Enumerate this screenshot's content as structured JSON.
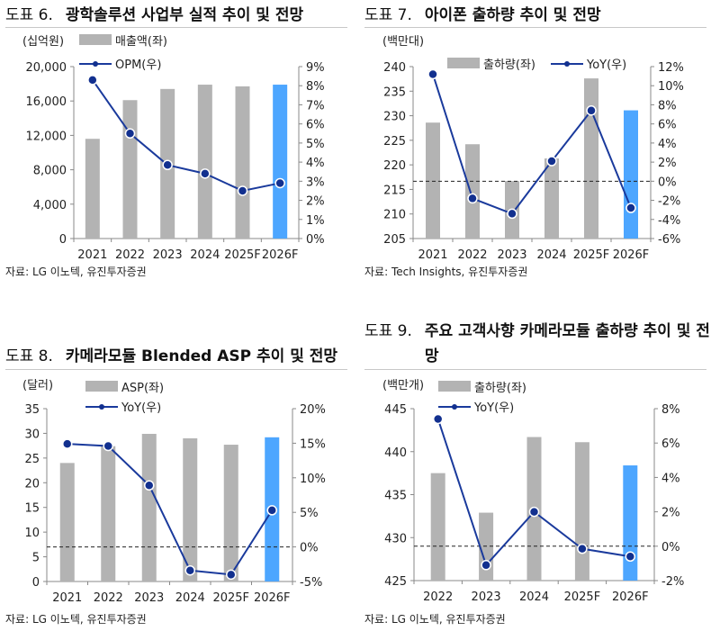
{
  "charts": [
    {
      "prefix": "도표 6.",
      "title": "광학솔루션 사업부 실적 추이 및 전망",
      "unit": "(십억원)",
      "source": "자료: LG 이노텍, 유진투자증권",
      "chart_data": {
        "type": "bar+line",
        "categories": [
          "2021",
          "2022",
          "2023",
          "2024",
          "2025F",
          "2026F"
        ],
        "bar": {
          "name": "매출액(좌)",
          "values": [
            11600,
            16100,
            17400,
            17900,
            17700,
            17900
          ]
        },
        "line": {
          "name": "OPM(우)",
          "values": [
            8.3,
            5.5,
            3.85,
            3.4,
            2.5,
            2.9
          ]
        },
        "y_left": {
          "min": 0,
          "max": 20000,
          "ticks": [
            "0",
            "4,000",
            "8,000",
            "12,000",
            "16,000",
            "20,000"
          ]
        },
        "y_right": {
          "min": 0,
          "max": 9,
          "ticks": [
            "0%",
            "1%",
            "2%",
            "3%",
            "4%",
            "5%",
            "6%",
            "7%",
            "8%",
            "9%"
          ]
        },
        "zero_line": false,
        "highlight_last": true,
        "colors": {
          "bar": "#b3b3b3",
          "highlight": "#4da6ff",
          "line": "#1a3a9c"
        }
      }
    },
    {
      "prefix": "도표 7.",
      "title": "아이폰 출하량 추이 및 전망",
      "unit": "(백만대)",
      "source": "자료: Tech Insights, 유진투자증권",
      "chart_data": {
        "type": "bar+line",
        "categories": [
          "2021",
          "2022",
          "2023",
          "2024",
          "2025F",
          "2026F"
        ],
        "bar": {
          "name": "출하량(좌)",
          "values": [
            228.6,
            224.2,
            216.7,
            221.3,
            237.6,
            231.1
          ]
        },
        "line": {
          "name": "YoY(우)",
          "values": [
            11.2,
            -1.8,
            -3.4,
            2.1,
            7.4,
            -2.8
          ]
        },
        "y_left": {
          "min": 205,
          "max": 240,
          "ticks": [
            "205",
            "210",
            "215",
            "220",
            "225",
            "230",
            "235",
            "240"
          ]
        },
        "y_right": {
          "min": -6,
          "max": 12,
          "ticks": [
            "-6%",
            "-4%",
            "-2%",
            "0%",
            "2%",
            "4%",
            "6%",
            "8%",
            "10%",
            "12%"
          ]
        },
        "zero_line": true,
        "highlight_last": true,
        "colors": {
          "bar": "#b3b3b3",
          "highlight": "#4da6ff",
          "line": "#1a3a9c"
        }
      }
    },
    {
      "prefix": "도표 8.",
      "title": "카메라모듈 Blended ASP 추이 및 전망",
      "unit": "(달러)",
      "source": "자료: LG 이노텍, 유진투자증권",
      "chart_data": {
        "type": "bar+line",
        "categories": [
          "2021",
          "2022",
          "2023",
          "2024",
          "2025F",
          "2026F"
        ],
        "bar": {
          "name": "ASP(좌)",
          "values": [
            24.0,
            27.4,
            29.9,
            29.0,
            27.7,
            29.2
          ]
        },
        "line": {
          "name": "YoY(우)",
          "values": [
            14.9,
            14.6,
            8.9,
            -3.4,
            -4.0,
            5.3
          ]
        },
        "y_left": {
          "min": 0,
          "max": 35,
          "ticks": [
            "0",
            "5",
            "10",
            "15",
            "20",
            "25",
            "30",
            "35"
          ]
        },
        "y_right": {
          "min": -5,
          "max": 20,
          "ticks": [
            "-5%",
            "0%",
            "5%",
            "10%",
            "15%",
            "20%"
          ]
        },
        "zero_line": true,
        "highlight_last": true,
        "colors": {
          "bar": "#b3b3b3",
          "highlight": "#4da6ff",
          "line": "#1a3a9c"
        }
      }
    },
    {
      "prefix": "도표 9.",
      "title": "주요 고객사향 카메라모듈 출하량 추이 및 전망",
      "unit": "(백만개)",
      "source": "자료: LG 이노텍, 유진투자증권",
      "chart_data": {
        "type": "bar+line",
        "categories": [
          "2022",
          "2023",
          "2024",
          "2025F",
          "2026F"
        ],
        "bar": {
          "name": "출하량(좌)",
          "values": [
            437.5,
            432.9,
            441.7,
            441.1,
            438.4
          ]
        },
        "line": {
          "name": "YoY(우)",
          "values": [
            7.4,
            -1.1,
            2.0,
            -0.15,
            -0.6
          ]
        },
        "y_left": {
          "min": 425,
          "max": 445,
          "ticks": [
            "425",
            "430",
            "435",
            "440",
            "445"
          ]
        },
        "y_right": {
          "min": -2,
          "max": 8,
          "ticks": [
            "-2%",
            "0%",
            "2%",
            "4%",
            "6%",
            "8%"
          ]
        },
        "zero_line": true,
        "highlight_last": true,
        "colors": {
          "bar": "#b3b3b3",
          "highlight": "#4da6ff",
          "line": "#1a3a9c"
        }
      }
    }
  ]
}
